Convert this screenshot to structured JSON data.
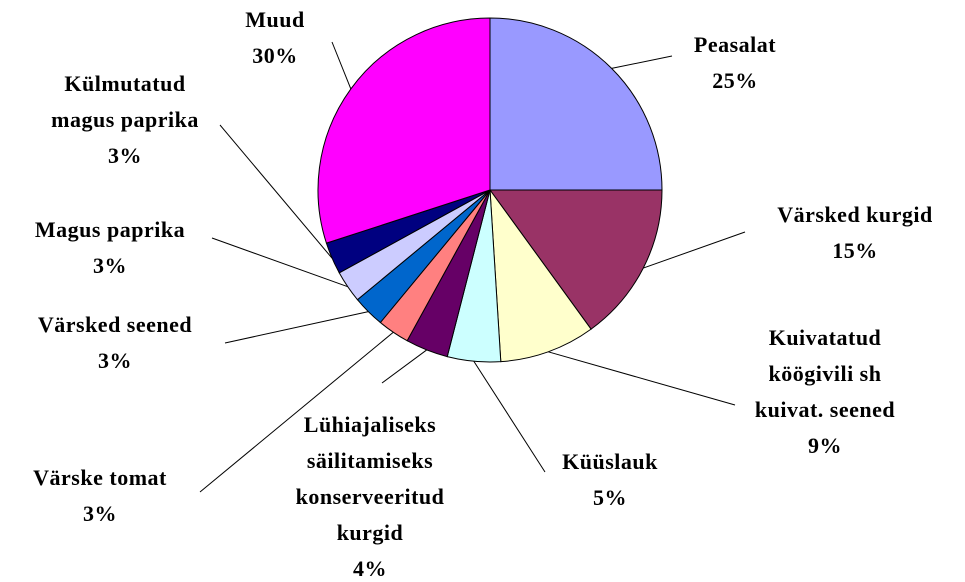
{
  "chart_data": {
    "type": "pie",
    "categories": [
      "Peasalat",
      "Värsked kurgid",
      "Kuivatatud\nköögivili sh\nkuivat. seened",
      "Küüslauk",
      "Lühiajaliseks\nsäilitamiseks\nkonserveeritud\nkurgid",
      "Värske tomat",
      "Värsked seened",
      "Magus paprika",
      "Külmutatud\nmagus paprika",
      "Muud"
    ],
    "values": [
      25,
      15,
      9,
      5,
      4,
      3,
      3,
      3,
      3,
      30
    ],
    "value_labels": [
      "25%",
      "15%",
      "9%",
      "5%",
      "4%",
      "3%",
      "3%",
      "3%",
      "3%",
      "30%"
    ],
    "colors": [
      "#9999ff",
      "#993366",
      "#ffffcc",
      "#ccffff",
      "#660066",
      "#ff8080",
      "#0066cc",
      "#ccccff",
      "#000080",
      "#ff00ff"
    ]
  }
}
